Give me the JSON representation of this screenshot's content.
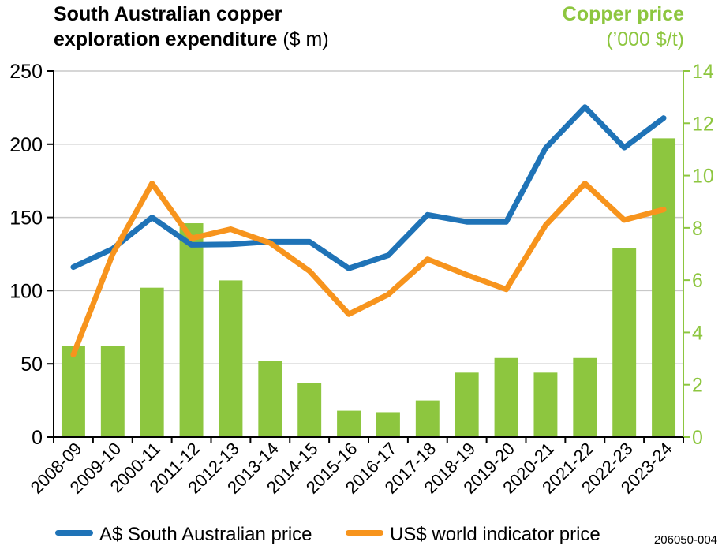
{
  "title_left": {
    "line1": "South Australian copper",
    "line2_bold": "exploration expenditure",
    "line2_unit": " ($ m)"
  },
  "title_right": {
    "line1": "Copper price",
    "line2": "(’000 $/t)"
  },
  "footnote": "206050-004",
  "colors": {
    "bars": "#8dc63f",
    "sa_price": "#1f73b7",
    "world_price": "#f7941d",
    "right_axis": "#8dc63f",
    "grid": "#c8c8c8"
  },
  "chart_data": {
    "type": "bar",
    "categories": [
      "2008-09",
      "2009-10",
      "2000-11",
      "2011-12",
      "2012-13",
      "2013-14",
      "2014-15",
      "2015-16",
      "2016-17",
      "2017-18",
      "2018-19",
      "2019-20",
      "2020-21",
      "2021-22",
      "2022-23",
      "2023-24"
    ],
    "left_axis": {
      "label": "",
      "ylim": [
        0,
        250
      ],
      "ticks": [
        0,
        50,
        100,
        150,
        200,
        250
      ]
    },
    "right_axis": {
      "label": "",
      "ylim": [
        0,
        14
      ],
      "ticks": [
        0,
        2,
        4,
        6,
        8,
        10,
        12,
        14
      ]
    },
    "bars": {
      "axis": "left",
      "values": [
        62,
        62,
        102,
        146,
        107,
        52,
        37,
        18,
        17,
        25,
        44,
        54,
        44,
        54,
        129,
        204
      ]
    },
    "series": [
      {
        "name": "A$ South Australian price",
        "axis": "right",
        "type": "line",
        "values": [
          6.5,
          7.2,
          8.4,
          7.35,
          7.37,
          7.47,
          7.47,
          6.45,
          6.95,
          8.5,
          8.23,
          8.23,
          11.05,
          12.62,
          11.07,
          12.2
        ]
      },
      {
        "name": "US$ world indicator price",
        "axis": "right",
        "type": "line",
        "values": [
          3.15,
          7.0,
          9.7,
          7.6,
          7.95,
          7.42,
          6.35,
          4.7,
          5.45,
          6.8,
          6.2,
          5.65,
          8.1,
          9.7,
          8.3,
          8.7
        ]
      }
    ],
    "grid": true,
    "legend_placement": "bottom"
  }
}
